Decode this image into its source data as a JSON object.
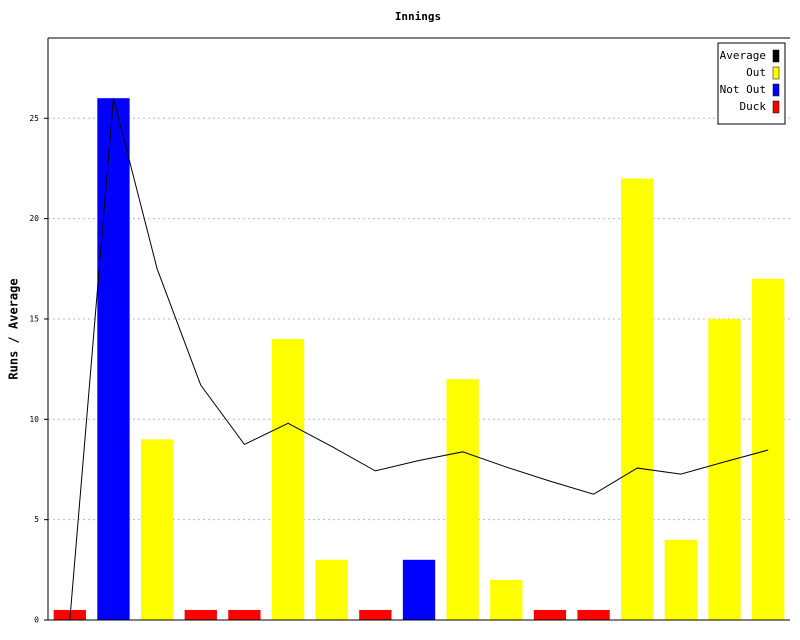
{
  "chart_data": {
    "type": "bar",
    "title": "Innings",
    "y_label": "Runs / Average",
    "categories": [
      null,
      null,
      null,
      null,
      null,
      null,
      null,
      null,
      null,
      null,
      null,
      null,
      null,
      null,
      null,
      null,
      null
    ],
    "ylim": [
      0,
      29
    ],
    "yticks": [
      0,
      5,
      10,
      15,
      20,
      25
    ],
    "grid": true,
    "legend": "top-right",
    "series": [
      {
        "name": "Average",
        "color": "#000000",
        "type": "line",
        "values": [
          0,
          26,
          17.5,
          11.7,
          8.75,
          9.8,
          8.65,
          7.43,
          7.95,
          8.38,
          7.62,
          6.92,
          6.27,
          7.57,
          7.27,
          7.88,
          8.47
        ]
      },
      {
        "name": "Out",
        "color": "#ffff00",
        "values": [
          null,
          null,
          9,
          null,
          null,
          14,
          3,
          null,
          null,
          12,
          2,
          null,
          null,
          22,
          4,
          15,
          17
        ]
      },
      {
        "name": "Not Out",
        "color": "#0000ff",
        "values": [
          null,
          26,
          null,
          null,
          null,
          null,
          null,
          null,
          3,
          null,
          null,
          null,
          null,
          null,
          null,
          null,
          null
        ]
      },
      {
        "name": "Duck",
        "color": "#ff0000",
        "values": [
          0.5,
          null,
          null,
          0.5,
          0.5,
          null,
          null,
          0.5,
          null,
          null,
          null,
          0.5,
          0.5,
          null,
          null,
          null,
          null
        ]
      }
    ]
  }
}
